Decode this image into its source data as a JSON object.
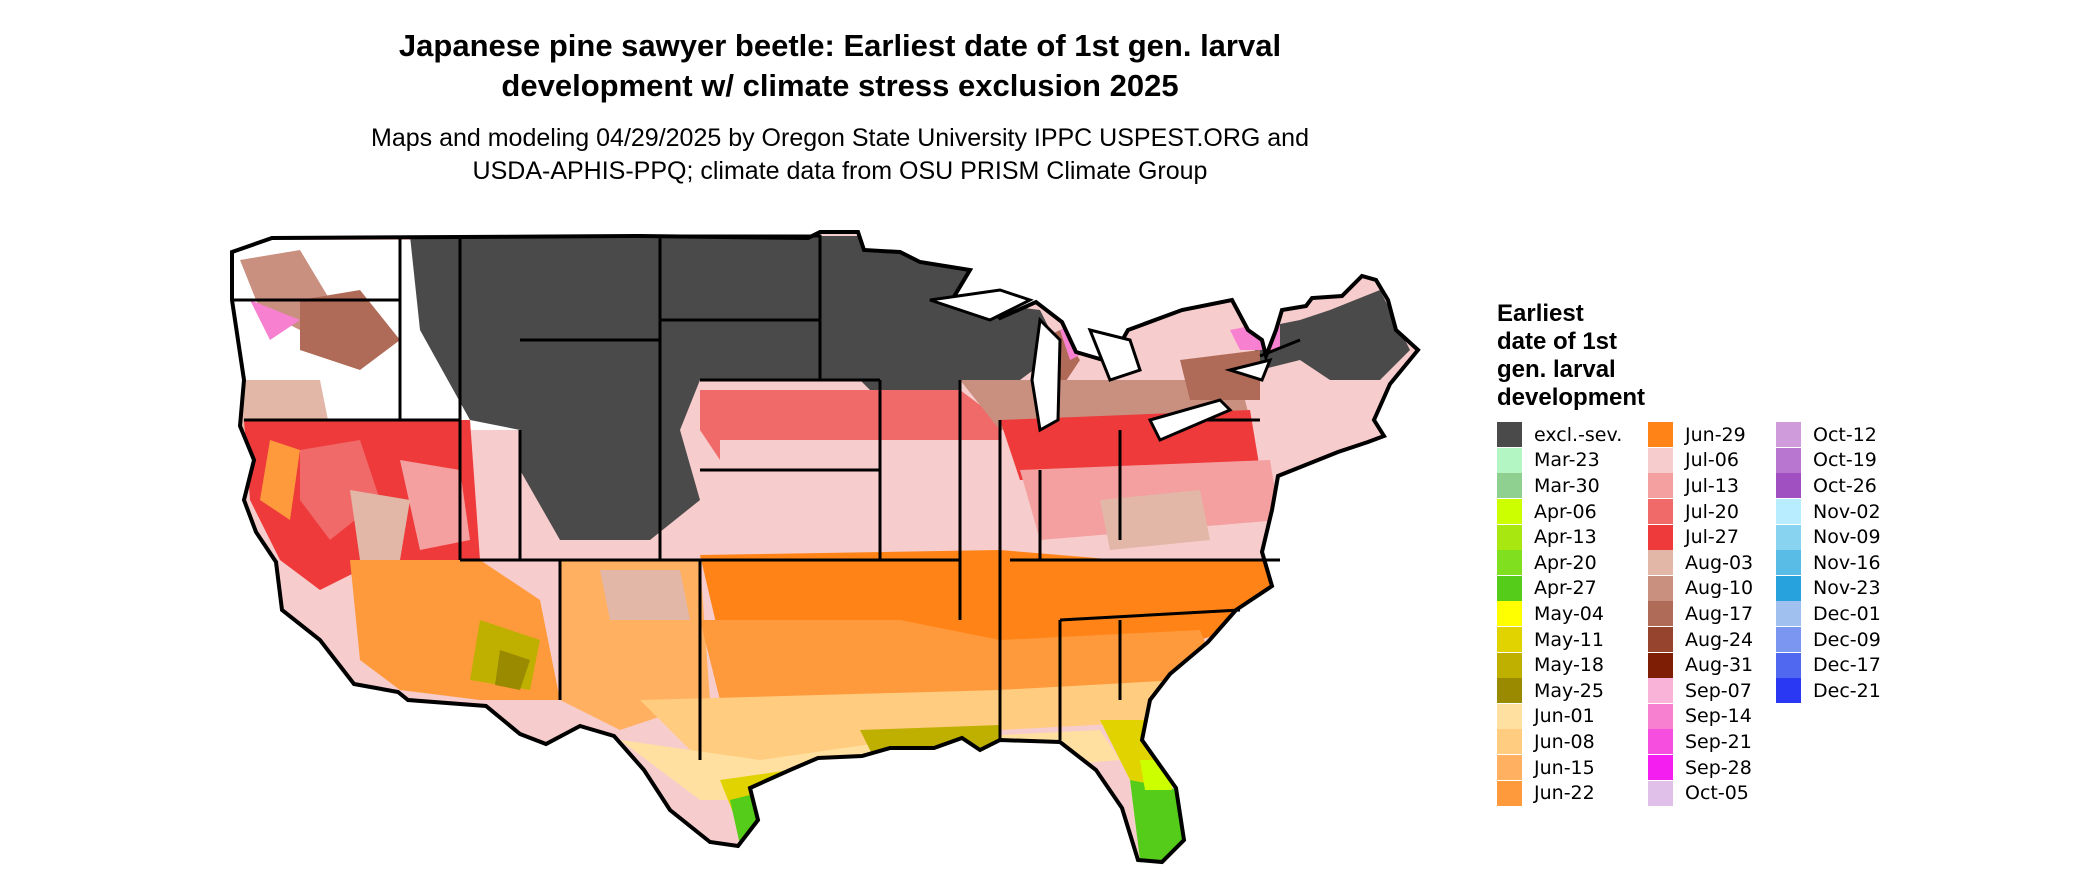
{
  "title": {
    "line1": "Japanese pine sawyer beetle: Earliest date of 1st gen. larval",
    "line2": "development w/ climate stress exclusion 2025"
  },
  "subtitle": {
    "line1": "Maps and modeling 04/29/2025 by Oregon State University IPPC USPEST.ORG and",
    "line2": "USDA-APHIS-PPQ; climate data from OSU PRISM Climate Group"
  },
  "legend": {
    "title": [
      "Earliest",
      "date of 1st",
      "gen. larval",
      "development"
    ],
    "items": [
      {
        "label": "excl.-sev.",
        "color": "#4a4a4a"
      },
      {
        "label": "Mar-23",
        "color": "#b3f5c3"
      },
      {
        "label": "Mar-30",
        "color": "#8fcf8f"
      },
      {
        "label": "Apr-06",
        "color": "#ccff00"
      },
      {
        "label": "Apr-13",
        "color": "#a8e810"
      },
      {
        "label": "Apr-20",
        "color": "#80e020"
      },
      {
        "label": "Apr-27",
        "color": "#55cc1a"
      },
      {
        "label": "May-04",
        "color": "#ffff00"
      },
      {
        "label": "May-11",
        "color": "#e0d300"
      },
      {
        "label": "May-18",
        "color": "#bfb000"
      },
      {
        "label": "May-25",
        "color": "#9a8a00"
      },
      {
        "label": "Jun-01",
        "color": "#ffe0a0"
      },
      {
        "label": "Jun-08",
        "color": "#ffcc80"
      },
      {
        "label": "Jun-15",
        "color": "#ffb060"
      },
      {
        "label": "Jun-22",
        "color": "#ff9a3c"
      },
      {
        "label": "Jun-29",
        "color": "#ff8316"
      },
      {
        "label": "Jul-06",
        "color": "#f7cccc"
      },
      {
        "label": "Jul-13",
        "color": "#f4a0a0"
      },
      {
        "label": "Jul-20",
        "color": "#f06a6a"
      },
      {
        "label": "Jul-27",
        "color": "#ee3a3a"
      },
      {
        "label": "Aug-03",
        "color": "#e2b7a8"
      },
      {
        "label": "Aug-10",
        "color": "#c99080"
      },
      {
        "label": "Aug-17",
        "color": "#b06a58"
      },
      {
        "label": "Aug-24",
        "color": "#97442f"
      },
      {
        "label": "Aug-31",
        "color": "#7d1e05"
      },
      {
        "label": "Sep-07",
        "color": "#f9b3d8"
      },
      {
        "label": "Sep-14",
        "color": "#f880d0"
      },
      {
        "label": "Sep-21",
        "color": "#f64fe0"
      },
      {
        "label": "Sep-28",
        "color": "#f41ef0"
      },
      {
        "label": "Oct-05",
        "color": "#e0c0e8"
      },
      {
        "label": "Oct-12",
        "color": "#cf9bdb"
      },
      {
        "label": "Oct-19",
        "color": "#b876d0"
      },
      {
        "label": "Oct-26",
        "color": "#a050c0"
      },
      {
        "label": "Nov-02",
        "color": "#b8ecff"
      },
      {
        "label": "Nov-09",
        "color": "#88d4f0"
      },
      {
        "label": "Nov-16",
        "color": "#58bce6"
      },
      {
        "label": "Nov-23",
        "color": "#28a2dc"
      },
      {
        "label": "Dec-01",
        "color": "#a0c0f0"
      },
      {
        "label": "Dec-09",
        "color": "#7a96f0"
      },
      {
        "label": "Dec-17",
        "color": "#5068f0"
      },
      {
        "label": "Dec-21",
        "color": "#2a38f4"
      }
    ]
  },
  "map_colors": {
    "excluded": "#4a4a4a",
    "boundary": "#000000",
    "no_data": "#ffffff"
  }
}
